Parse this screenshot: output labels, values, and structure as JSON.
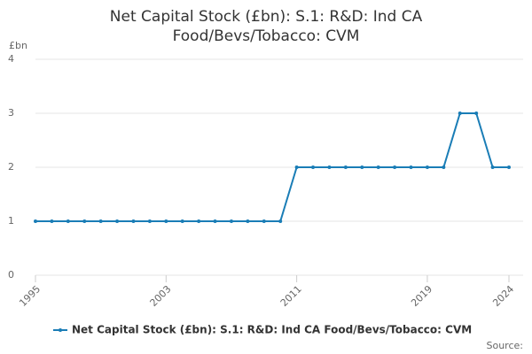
{
  "chart_data": {
    "type": "line",
    "title": [
      "Net Capital Stock (£bn): S.1: R&D: Ind CA",
      "Food/Bevs/Tobacco: CVM"
    ],
    "y_label": "£bn",
    "source": "Source:",
    "x": [
      1995,
      1996,
      1997,
      1998,
      1999,
      2000,
      2001,
      2002,
      2003,
      2004,
      2005,
      2006,
      2007,
      2008,
      2009,
      2010,
      2011,
      2012,
      2013,
      2014,
      2015,
      2016,
      2017,
      2018,
      2019,
      2020,
      2021,
      2022,
      2023,
      2024
    ],
    "series": [
      {
        "name": "Net Capital Stock (£bn): S.1: R&D: Ind CA Food/Bevs/Tobacco: CVM",
        "color": "#1a7db6",
        "values": [
          1,
          1,
          1,
          1,
          1,
          1,
          1,
          1,
          1,
          1,
          1,
          1,
          1,
          1,
          1,
          1,
          2,
          2,
          2,
          2,
          2,
          2,
          2,
          2,
          2,
          2,
          3,
          3,
          2,
          2
        ]
      }
    ],
    "xlim": [
      1995,
      2024
    ],
    "xticks": [
      1995,
      2003,
      2011,
      2019,
      2024
    ],
    "ylim": [
      0,
      4
    ],
    "yticks": [
      0,
      1,
      2,
      3,
      4
    ],
    "grid": true
  }
}
